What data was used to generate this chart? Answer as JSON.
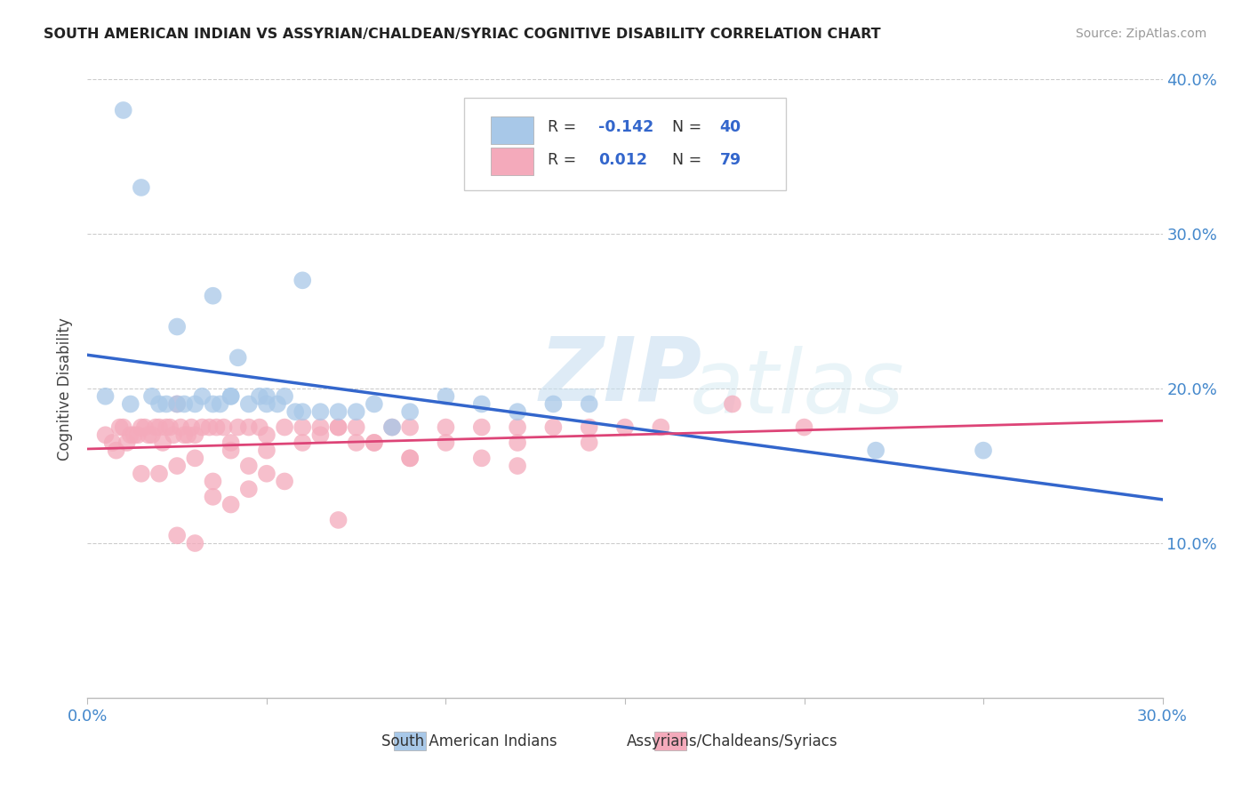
{
  "title": "SOUTH AMERICAN INDIAN VS ASSYRIAN/CHALDEAN/SYRIAC COGNITIVE DISABILITY CORRELATION CHART",
  "source": "Source: ZipAtlas.com",
  "ylabel_label": "Cognitive Disability",
  "xlim": [
    0.0,
    0.3
  ],
  "ylim": [
    0.0,
    0.4
  ],
  "blue_R": -0.142,
  "blue_N": 40,
  "pink_R": 0.012,
  "pink_N": 79,
  "blue_color": "#A8C8E8",
  "pink_color": "#F4AABB",
  "blue_line_color": "#3366CC",
  "pink_line_color": "#DD4477",
  "legend_label_blue": "South American Indians",
  "legend_label_pink": "Assyrians/Chaldeans/Syriacs",
  "watermark_zip": "ZIP",
  "watermark_atlas": "atlas",
  "right_ytick_labels": [
    "",
    "10.0%",
    "20.0%",
    "30.0%",
    "40.0%"
  ],
  "right_ytick_values": [
    0.0,
    0.1,
    0.2,
    0.3,
    0.4
  ],
  "blue_points_x": [
    0.005,
    0.01,
    0.012,
    0.015,
    0.018,
    0.02,
    0.022,
    0.025,
    0.027,
    0.03,
    0.032,
    0.035,
    0.037,
    0.04,
    0.042,
    0.045,
    0.048,
    0.05,
    0.053,
    0.055,
    0.058,
    0.06,
    0.065,
    0.07,
    0.075,
    0.08,
    0.085,
    0.09,
    0.1,
    0.11,
    0.12,
    0.13,
    0.035,
    0.025,
    0.04,
    0.05,
    0.06,
    0.22,
    0.25,
    0.14
  ],
  "blue_points_y": [
    0.195,
    0.38,
    0.19,
    0.33,
    0.195,
    0.19,
    0.19,
    0.19,
    0.19,
    0.19,
    0.195,
    0.19,
    0.19,
    0.195,
    0.22,
    0.19,
    0.195,
    0.195,
    0.19,
    0.195,
    0.185,
    0.185,
    0.185,
    0.185,
    0.185,
    0.19,
    0.175,
    0.185,
    0.195,
    0.19,
    0.185,
    0.19,
    0.26,
    0.24,
    0.195,
    0.19,
    0.27,
    0.16,
    0.16,
    0.19
  ],
  "pink_points_x": [
    0.005,
    0.007,
    0.008,
    0.009,
    0.01,
    0.011,
    0.012,
    0.013,
    0.014,
    0.015,
    0.016,
    0.017,
    0.018,
    0.019,
    0.02,
    0.021,
    0.022,
    0.023,
    0.024,
    0.025,
    0.026,
    0.027,
    0.028,
    0.029,
    0.03,
    0.032,
    0.034,
    0.036,
    0.038,
    0.04,
    0.042,
    0.045,
    0.048,
    0.05,
    0.055,
    0.06,
    0.065,
    0.07,
    0.075,
    0.08,
    0.085,
    0.09,
    0.1,
    0.11,
    0.12,
    0.13,
    0.14,
    0.15,
    0.16,
    0.18,
    0.025,
    0.03,
    0.035,
    0.04,
    0.045,
    0.05,
    0.06,
    0.065,
    0.07,
    0.075,
    0.08,
    0.09,
    0.1,
    0.11,
    0.12,
    0.14,
    0.055,
    0.045,
    0.035,
    0.02,
    0.015,
    0.025,
    0.03,
    0.04,
    0.05,
    0.07,
    0.09,
    0.12,
    0.2
  ],
  "pink_points_y": [
    0.17,
    0.165,
    0.16,
    0.175,
    0.175,
    0.165,
    0.17,
    0.17,
    0.17,
    0.175,
    0.175,
    0.17,
    0.17,
    0.175,
    0.175,
    0.165,
    0.175,
    0.175,
    0.17,
    0.19,
    0.175,
    0.17,
    0.17,
    0.175,
    0.17,
    0.175,
    0.175,
    0.175,
    0.175,
    0.165,
    0.175,
    0.175,
    0.175,
    0.17,
    0.175,
    0.175,
    0.17,
    0.175,
    0.175,
    0.165,
    0.175,
    0.175,
    0.175,
    0.175,
    0.175,
    0.175,
    0.175,
    0.175,
    0.175,
    0.19,
    0.15,
    0.155,
    0.14,
    0.16,
    0.15,
    0.16,
    0.165,
    0.175,
    0.175,
    0.165,
    0.165,
    0.155,
    0.165,
    0.155,
    0.165,
    0.165,
    0.14,
    0.135,
    0.13,
    0.145,
    0.145,
    0.105,
    0.1,
    0.125,
    0.145,
    0.115,
    0.155,
    0.15,
    0.175
  ]
}
